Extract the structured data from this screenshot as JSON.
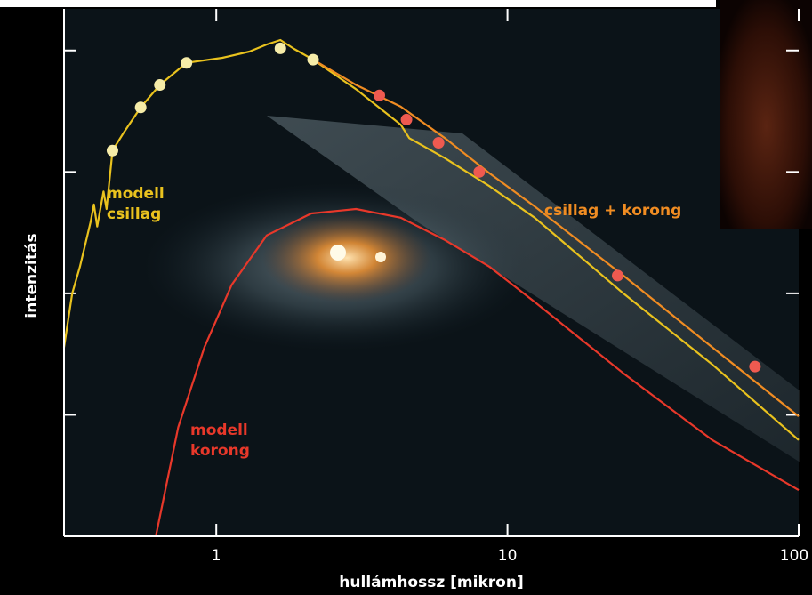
{
  "chart_data": {
    "type": "line",
    "xscale": "log",
    "yscale": "log",
    "xlim": [
      0.3,
      100
    ],
    "ylim": [
      1,
      22000
    ],
    "xticks": [
      1,
      10,
      100
    ],
    "yticks": [
      1,
      10,
      100,
      1000,
      10000
    ],
    "xlabel": "hullámhossz [mikron]",
    "ylabel": "intenzitás",
    "series": [
      {
        "style": "line",
        "color": "#e9c21e",
        "x": [
          0.3,
          0.32,
          0.34,
          0.37,
          0.38,
          0.39,
          0.41,
          0.42,
          0.44,
          0.48,
          0.55,
          0.64,
          0.79,
          1.05,
          1.3,
          1.49,
          1.66,
          1.85,
          2.15,
          3.02,
          4.3,
          4.6,
          6.1,
          8.7,
          12.4,
          25,
          50.5,
          100
        ],
        "values": [
          36,
          100,
          165,
          385,
          540,
          355,
          690,
          495,
          1500,
          2090,
          3400,
          5200,
          7900,
          8700,
          9800,
          11200,
          12200,
          10300,
          8400,
          4800,
          2450,
          1900,
          1300,
          760,
          420,
          100,
          26,
          6.2
        ]
      },
      {
        "style": "line",
        "color": "#f08c22",
        "x": [
          2.15,
          3.02,
          4.3,
          6.1,
          8.7,
          12.4,
          25,
          50.5,
          100
        ],
        "values": [
          8400,
          5200,
          3450,
          1900,
          970,
          520,
          140,
          36,
          9.7
        ]
      },
      {
        "style": "line",
        "color": "#e8382a",
        "x": [
          0.62,
          0.74,
          0.91,
          1.13,
          1.49,
          2.12,
          3.02,
          4.3,
          6.1,
          8.7,
          12.4,
          25,
          50.5,
          100
        ],
        "values": [
          1,
          7.9,
          36,
          118,
          300,
          455,
          495,
          420,
          275,
          165,
          85,
          22,
          6.2,
          2.4
        ]
      },
      {
        "style": "points",
        "color": "#f6eca8",
        "x": [
          0.44,
          0.55,
          0.64,
          0.79,
          1.66,
          2.15
        ],
        "values": [
          1500,
          3400,
          5200,
          7900,
          10400,
          8400
        ]
      },
      {
        "style": "points",
        "color": "#ef5a50",
        "x": [
          3.63,
          4.5,
          5.8,
          8.0,
          23.9,
          70.8
        ],
        "values": [
          4270,
          2700,
          1740,
          1000,
          140,
          25
        ]
      }
    ],
    "annotations": [
      {
        "lines": [
          "modell",
          "csillag"
        ],
        "color": "#e9c21e"
      },
      {
        "lines": [
          "csillag + korong"
        ],
        "color": "#f08c22"
      },
      {
        "lines": [
          "modell",
          "korong"
        ],
        "color": "#e8382a"
      }
    ]
  }
}
